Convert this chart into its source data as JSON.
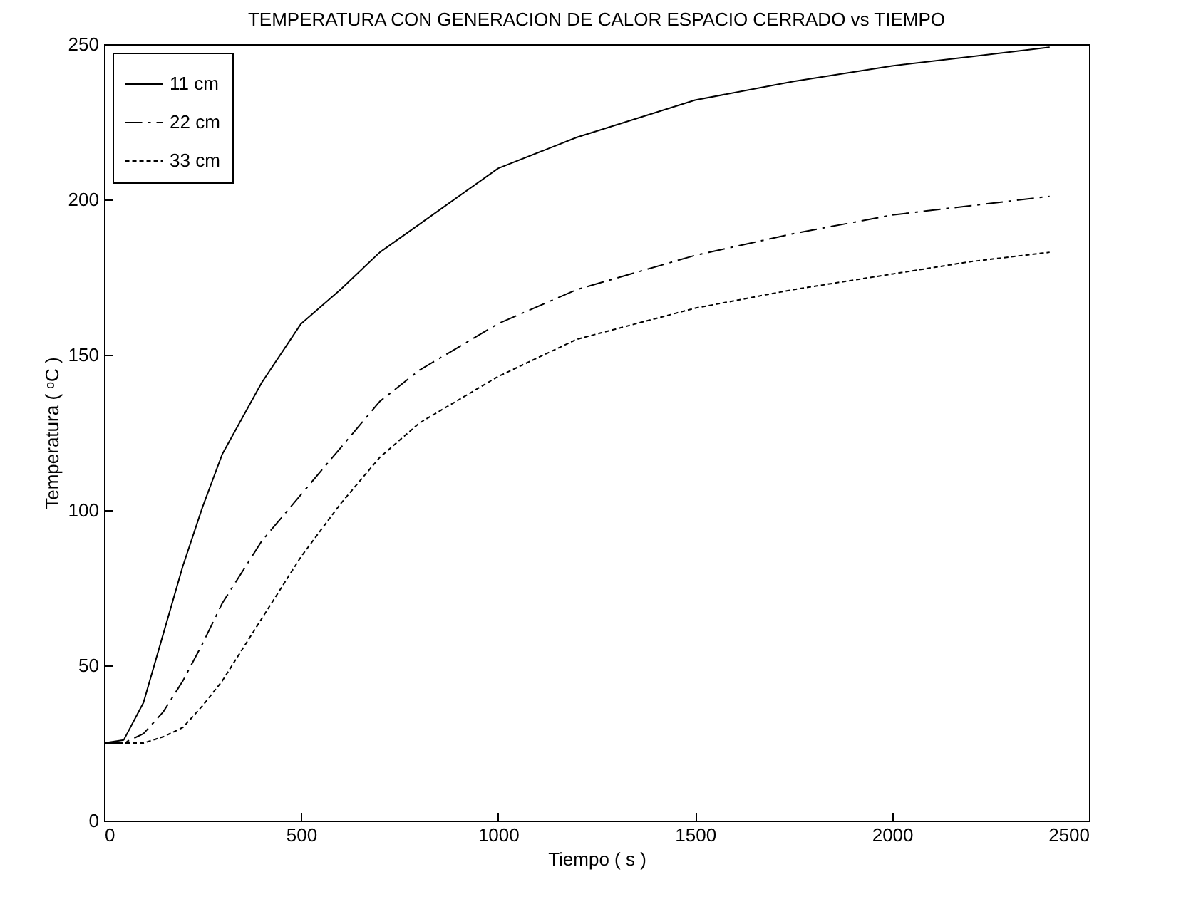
{
  "chart_data": {
    "type": "line",
    "title": "TEMPERATURA CON GENERACION DE CALOR ESPACIO CERRADO vs TIEMPO",
    "xlabel": "Tiempo ( s )",
    "ylabel": "Temperatura ( ᵒC )",
    "x": [
      0,
      50,
      100,
      150,
      200,
      250,
      300,
      400,
      500,
      600,
      700,
      800,
      1000,
      1200,
      1500,
      1750,
      2000,
      2200,
      2400
    ],
    "series": [
      {
        "name": "11 cm",
        "color": "#000000",
        "line_style": "solid",
        "values": [
          25,
          26,
          38,
          60,
          82,
          101,
          118,
          141,
          160,
          171,
          183,
          192,
          210,
          220,
          232,
          238,
          243,
          246,
          249
        ]
      },
      {
        "name": "22 cm",
        "color": "#000000",
        "line_style": "dashdot",
        "values": [
          25,
          25,
          28,
          35,
          45,
          57,
          70,
          90,
          105,
          120,
          135,
          145,
          160,
          171,
          182,
          189,
          195,
          198,
          201
        ]
      },
      {
        "name": "33 cm",
        "color": "#000000",
        "line_style": "dashed",
        "values": [
          25,
          25,
          25,
          27,
          30,
          37,
          45,
          65,
          85,
          102,
          117,
          128,
          143,
          155,
          165,
          171,
          176,
          180,
          183
        ]
      }
    ],
    "xlim": [
      0,
      2500
    ],
    "xticks": [
      0,
      500,
      1000,
      1500,
      2000,
      2500
    ],
    "ylim": [
      0,
      250
    ],
    "yticks": [
      0,
      50,
      100,
      150,
      200,
      250
    ],
    "legend": "top left",
    "grid": false
  }
}
